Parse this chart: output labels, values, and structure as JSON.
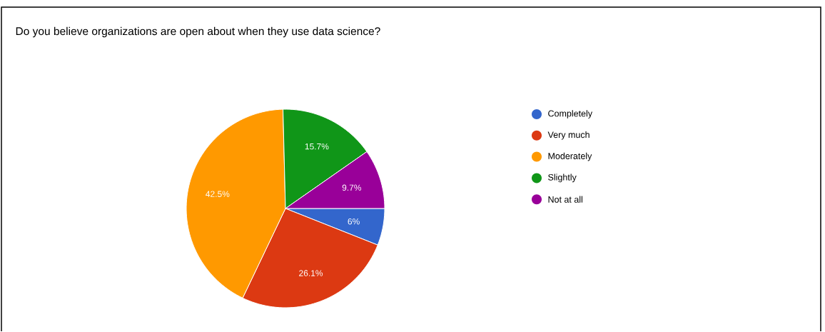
{
  "chart_data": {
    "type": "pie",
    "title": "Do you believe organizations are open about when they use data science?",
    "categories": [
      "Completely",
      "Very much",
      "Moderately",
      "Slightly",
      "Not at all"
    ],
    "values": [
      6,
      26.1,
      42.5,
      15.7,
      9.7
    ],
    "value_labels": [
      "6%",
      "26.1%",
      "42.5%",
      "15.7%",
      "9.7%"
    ],
    "colors": [
      "#3366cc",
      "#dc3912",
      "#ff9900",
      "#109618",
      "#990099"
    ],
    "legend": "right"
  }
}
